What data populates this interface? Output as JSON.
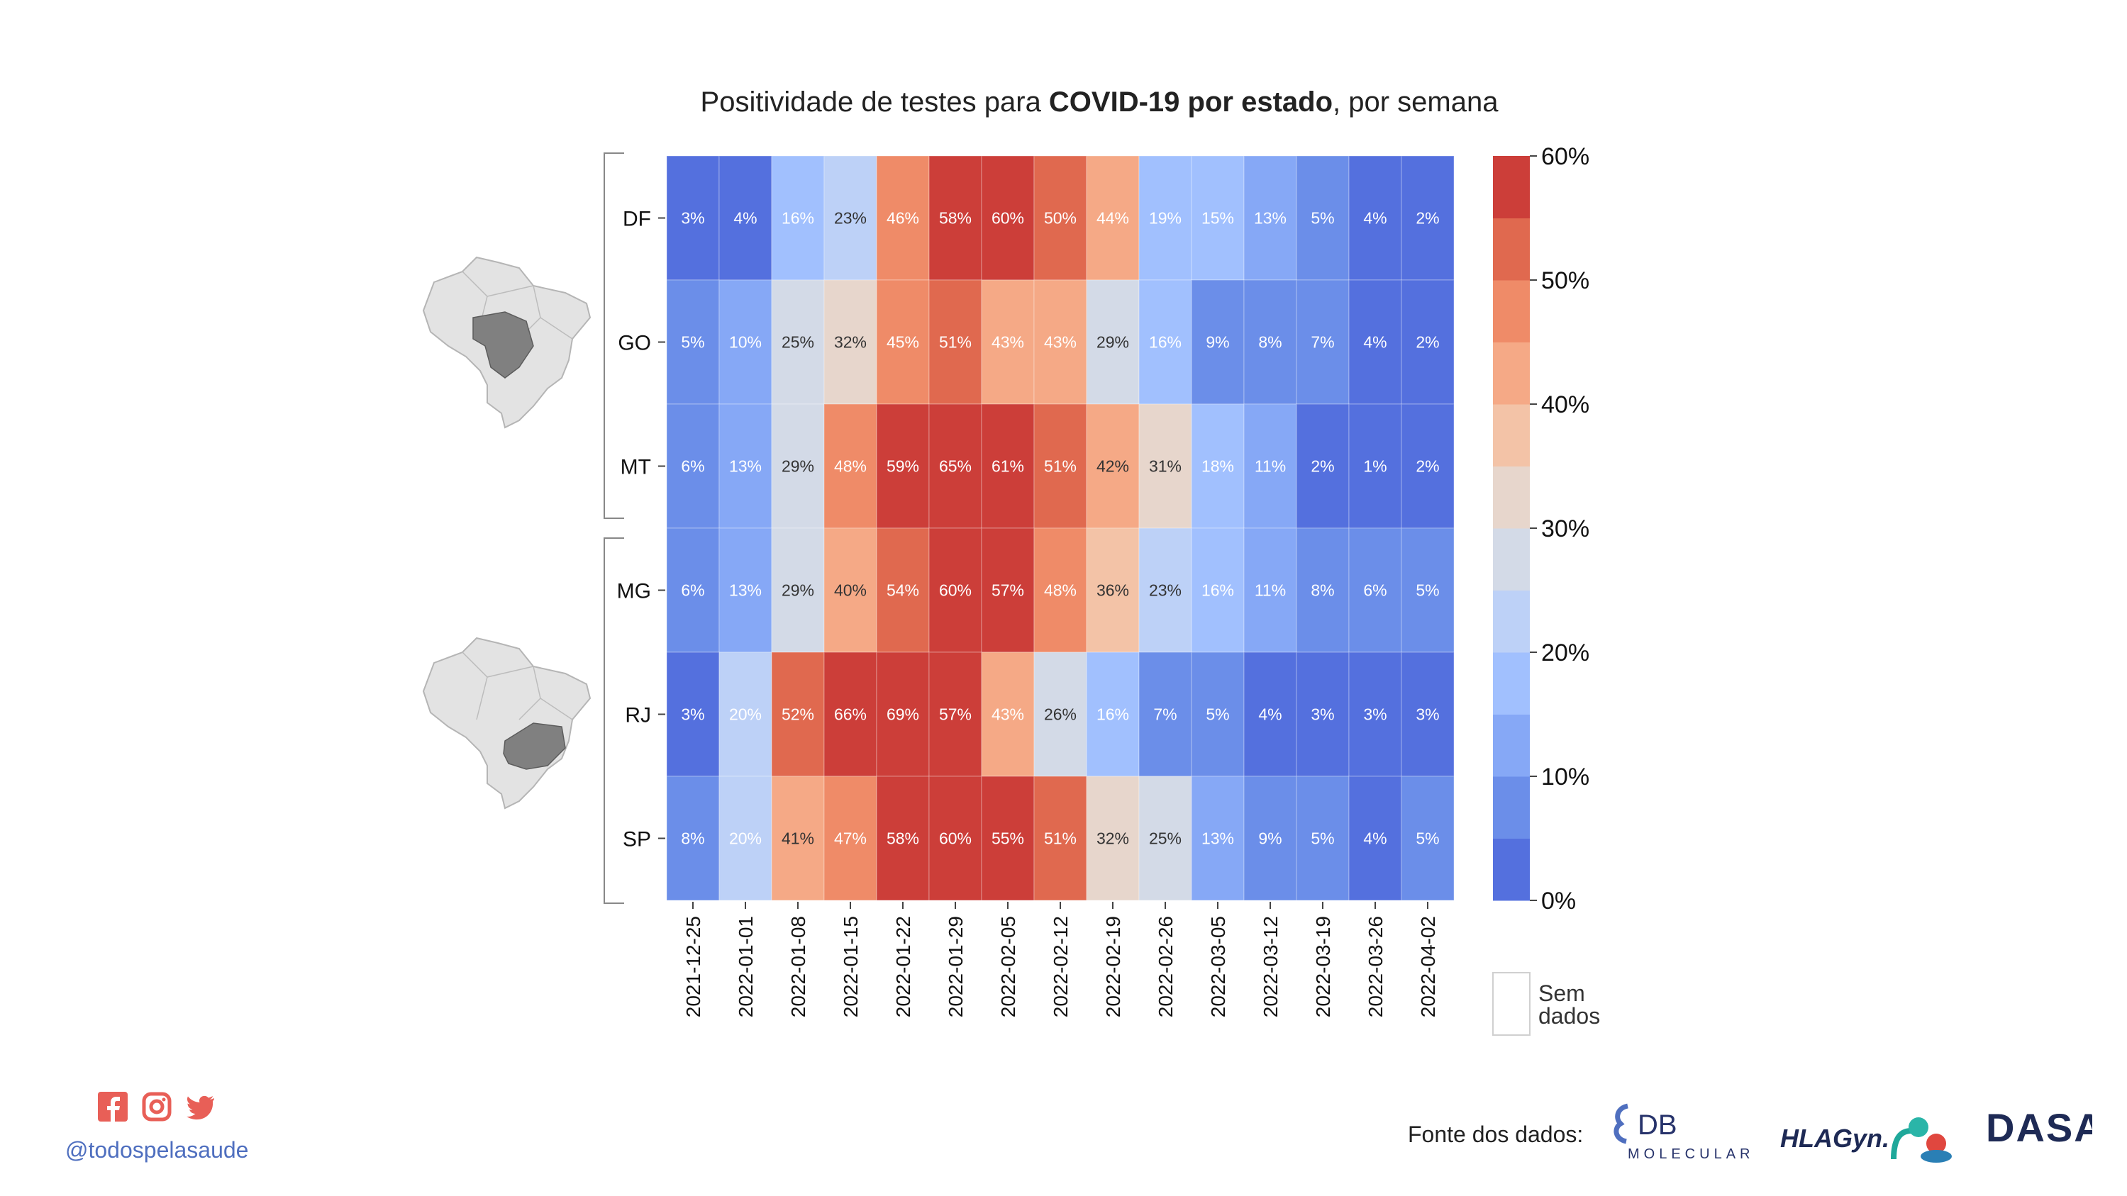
{
  "title": {
    "prefix": "Positividade de testes para ",
    "bold": "COVID-19 por estado",
    "suffix": ", por semana"
  },
  "chart_data": {
    "type": "heatmap",
    "x": [
      "2021-12-25",
      "2022-01-01",
      "2022-01-08",
      "2022-01-15",
      "2022-01-22",
      "2022-01-29",
      "2022-02-05",
      "2022-02-12",
      "2022-02-19",
      "2022-02-26",
      "2022-03-05",
      "2022-03-12",
      "2022-03-19",
      "2022-03-26",
      "2022-04-02"
    ],
    "y": [
      "DF",
      "GO",
      "MT",
      "MG",
      "RJ",
      "SP"
    ],
    "values": [
      [
        3,
        4,
        16,
        23,
        46,
        58,
        60,
        50,
        44,
        19,
        15,
        13,
        5,
        4,
        2
      ],
      [
        5,
        10,
        25,
        32,
        45,
        51,
        43,
        43,
        29,
        16,
        9,
        8,
        7,
        4,
        2
      ],
      [
        6,
        13,
        29,
        48,
        59,
        65,
        61,
        51,
        42,
        31,
        18,
        11,
        2,
        1,
        2
      ],
      [
        6,
        13,
        29,
        40,
        54,
        60,
        57,
        48,
        36,
        23,
        16,
        11,
        8,
        6,
        5
      ],
      [
        3,
        20,
        52,
        66,
        69,
        57,
        43,
        26,
        16,
        7,
        5,
        4,
        3,
        3,
        3
      ],
      [
        8,
        20,
        41,
        47,
        58,
        60,
        55,
        51,
        32,
        25,
        13,
        9,
        5,
        4,
        5
      ]
    ],
    "value_suffix": "%",
    "colorbar": {
      "range": [
        0,
        60
      ],
      "ticks": [
        "0%",
        "10%",
        "20%",
        "30%",
        "40%",
        "50%",
        "60%"
      ],
      "colors": [
        "#5470de",
        "#6b8ee9",
        "#86a8f6",
        "#a1c0fe",
        "#bdd1f7",
        "#d3dae7",
        "#e7d6cc",
        "#f3c3a7",
        "#f5a986",
        "#ef8b68",
        "#e0694f",
        "#cc3e39"
      ]
    },
    "groups": [
      "centro-oeste",
      "sudeste"
    ],
    "missing_label": "Sem dados"
  },
  "social": {
    "icons": [
      "facebook-icon",
      "instagram-icon",
      "twitter-icon"
    ],
    "handle": "@todospelasaude",
    "color": "#e85f57"
  },
  "source": {
    "label": "Fonte dos dados:",
    "logos": {
      "db_main": "DB",
      "db_sub": "MOLECULAR",
      "hla": "HLAGyn.",
      "dasa": "DASA"
    }
  }
}
